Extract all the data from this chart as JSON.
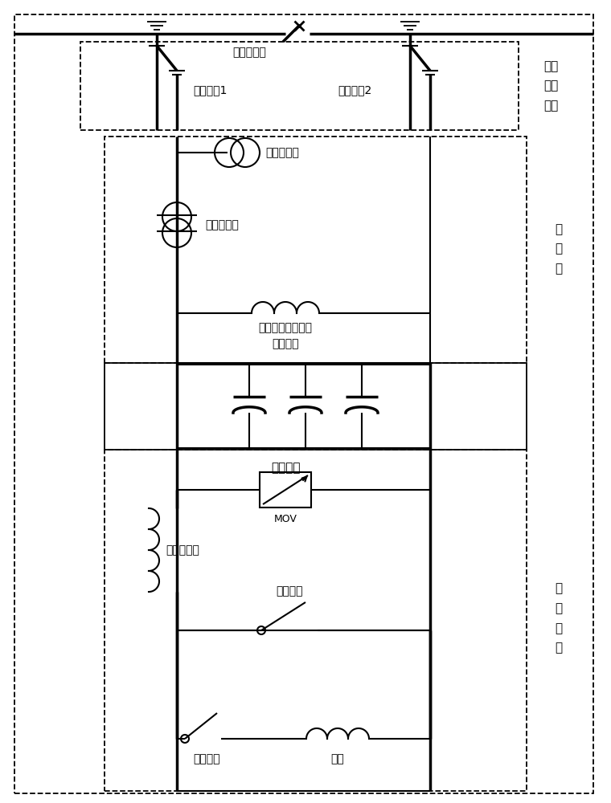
{
  "fig_width": 7.6,
  "fig_height": 10.0,
  "dpi": 100,
  "bg_color": "#ffffff",
  "labels": {
    "toutuiduanluqi": "投退断路器",
    "ligaikai1": "隔离开关1",
    "ligaikai2": "隔离开关2",
    "tou_qie": "投切\n操作\n机构",
    "dianya_hg": "电压互感器",
    "dianliu_hg": "电流互感器",
    "dianya_hg_dc": "电压互感器兼电容\n放电电路",
    "chuan_gan_qi": "传\n感\n器",
    "dianrongqi_zu": "电容器组",
    "MOV": "MOV",
    "zuni_diankangqi": "阻尼电抗器",
    "panglu_kaiguan": "旁路开关",
    "kuaisu_kaiguan": "快速开关",
    "diangan": "电感",
    "baohu_shebei": "保\n护\n设\n备"
  }
}
